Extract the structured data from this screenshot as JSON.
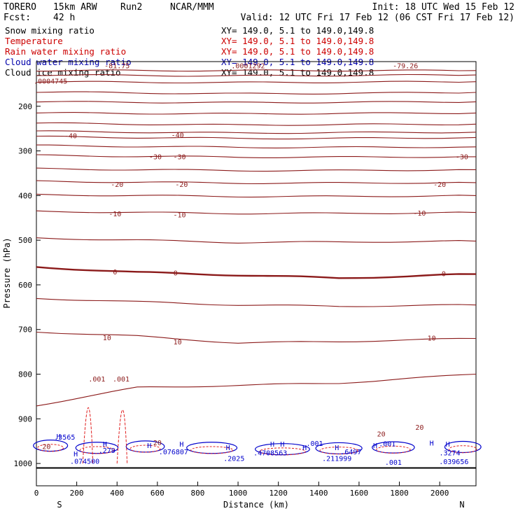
{
  "header": {
    "model": "TORERO",
    "resolution": "15km ARW",
    "run": "Run2",
    "org": "NCAR/MMM",
    "init": "Init: 18 UTC Wed 15 Feb 12",
    "fcst_label": "Fcst:",
    "fcst_value": "42 h",
    "valid": "Valid: 12 UTC Fri 17 Feb 12 (06 CST Fri 17 Feb 12)"
  },
  "legend": [
    {
      "name": "Snow mixing ratio",
      "xy": "XY= 149.0,  5.1 to 149.0,149.8",
      "color": "#000000"
    },
    {
      "name": "Temperature",
      "xy": "XY= 149.0,  5.1 to 149.0,149.8",
      "color": "#cc0000"
    },
    {
      "name": "Rain water mixing ratio",
      "xy": "XY= 149.0,  5.1 to 149.0,149.8",
      "color": "#cc0000"
    },
    {
      "name": "Cloud water mixing ratio",
      "xy": "XY= 149.0,  5.1 to 149.0,149.8",
      "color": "#0000aa"
    },
    {
      "name": "Cloud ice mixing ratio",
      "xy": "XY= 149.0,  5.1 to 149.0,149.8",
      "color": "#000000"
    }
  ],
  "colors": {
    "temperature": "#8b1a1a",
    "rain": "#e02020",
    "cloud_water": "#0000cc",
    "ground": "#000000"
  },
  "chart_data": {
    "type": "contour-cross-section",
    "xlabel": "Distance (km)",
    "ylabel": "Pressure (hPa)",
    "xlim": [
      0,
      2180
    ],
    "ylim": [
      1050,
      100
    ],
    "xticks": [
      0,
      200,
      400,
      600,
      800,
      1000,
      1200,
      1400,
      1600,
      1800,
      2000
    ],
    "yticks": [
      200,
      300,
      400,
      500,
      600,
      700,
      800,
      900,
      1000
    ],
    "x_ends": {
      "left": "S",
      "right": "N"
    },
    "temperature_isotherms": [
      {
        "t": -80,
        "p": [
          120,
          120,
          120,
          120,
          120
        ]
      },
      {
        "t": -75,
        "p": [
          130,
          131,
          132,
          131,
          130
        ]
      },
      {
        "t": -70,
        "p": [
          145,
          146,
          147,
          146,
          145
        ]
      },
      {
        "t": -65,
        "p": [
          168,
          170,
          172,
          171,
          169
        ]
      },
      {
        "t": -60,
        "p": [
          190,
          191,
          192,
          191,
          190
        ]
      },
      {
        "t": -55,
        "p": [
          215,
          216,
          217,
          216,
          215
        ]
      },
      {
        "t": -50,
        "p": [
          238,
          240,
          242,
          241,
          240
        ]
      },
      {
        "t": -45,
        "p": [
          256,
          258,
          260,
          259,
          258
        ]
      },
      {
        "t": -40,
        "p": [
          268,
          270,
          272,
          272,
          270
        ]
      },
      {
        "t": -35,
        "p": [
          288,
          290,
          292,
          292,
          291
        ]
      },
      {
        "t": -30,
        "p": [
          310,
          312,
          314,
          314,
          313
        ]
      },
      {
        "t": -25,
        "p": [
          340,
          342,
          344,
          344,
          342
        ]
      },
      {
        "t": -20,
        "p": [
          368,
          370,
          372,
          372,
          371
        ]
      },
      {
        "t": -15,
        "p": [
          398,
          400,
          402,
          402,
          400
        ]
      },
      {
        "t": -10,
        "p": [
          435,
          438,
          440,
          440,
          438
        ]
      },
      {
        "t": -5,
        "p": [
          495,
          500,
          505,
          504,
          502
        ]
      },
      {
        "t": 0,
        "p": [
          560,
          572,
          578,
          585,
          576
        ]
      },
      {
        "t": 5,
        "p": [
          630,
          638,
          645,
          648,
          645
        ]
      },
      {
        "t": 10,
        "p": [
          705,
          715,
          730,
          727,
          720
        ]
      },
      {
        "t": 15,
        "p": [
          870,
          830,
          825,
          820,
          800
        ]
      }
    ],
    "section_x_km": [
      0,
      500,
      1000,
      1500,
      2180
    ],
    "contour_labels": [
      {
        "text": "-79.26",
        "x": 1830,
        "p": 110
      },
      {
        "text": ".0004745",
        "x": 70,
        "p": 145
      },
      {
        "text": ".0001292",
        "x": 1050,
        "p": 110
      },
      {
        "text": "-81.75",
        "x": 400,
        "p": 110
      },
      {
        "text": "-40",
        "x": 170,
        "p": 267
      },
      {
        "text": "-40",
        "x": 700,
        "p": 265
      },
      {
        "text": "-30",
        "x": 590,
        "p": 314
      },
      {
        "text": "-30",
        "x": 710,
        "p": 314
      },
      {
        "text": "-30",
        "x": 2110,
        "p": 314
      },
      {
        "text": "-20",
        "x": 400,
        "p": 376
      },
      {
        "text": "-20",
        "x": 720,
        "p": 376
      },
      {
        "text": "-20",
        "x": 2000,
        "p": 376
      },
      {
        "text": "-10",
        "x": 390,
        "p": 442
      },
      {
        "text": "-10",
        "x": 710,
        "p": 444
      },
      {
        "text": "-10",
        "x": 1900,
        "p": 440
      },
      {
        "text": "0",
        "x": 390,
        "p": 572
      },
      {
        "text": "0",
        "x": 690,
        "p": 574
      },
      {
        "text": "0",
        "x": 2020,
        "p": 576
      },
      {
        "text": "10",
        "x": 350,
        "p": 719
      },
      {
        "text": "10",
        "x": 700,
        "p": 729
      },
      {
        "text": "10",
        "x": 1960,
        "p": 720
      },
      {
        "text": "20",
        "x": 1710,
        "p": 935
      },
      {
        "text": "20",
        "x": 1900,
        "p": 920
      },
      {
        "text": ".001",
        "x": 300,
        "p": 812
      },
      {
        "text": ".001",
        "x": 420,
        "p": 812
      },
      {
        "text": "20",
        "x": 50,
        "p": 963
      },
      {
        "text": ".3565",
        "x": 140,
        "p": 942
      },
      {
        "text": ".279",
        "x": 350,
        "p": 972
      },
      {
        "text": "20",
        "x": 600,
        "p": 954
      },
      {
        "text": ".076807",
        "x": 680,
        "p": 975
      },
      {
        "text": ".2025",
        "x": 980,
        "p": 990
      },
      {
        "text": ".4708563",
        "x": 1160,
        "p": 977
      },
      {
        "text": ".001",
        "x": 1380,
        "p": 956
      },
      {
        "text": ".6497",
        "x": 1560,
        "p": 975
      },
      {
        "text": ".211999",
        "x": 1490,
        "p": 990
      },
      {
        "text": ".001",
        "x": 1740,
        "p": 957
      },
      {
        "text": ".001",
        "x": 1770,
        "p": 998
      },
      {
        "text": ".074500",
        "x": 240,
        "p": 996
      },
      {
        "text": ".3274",
        "x": 2050,
        "p": 977
      },
      {
        "text": ".039656",
        "x": 2070,
        "p": 997
      }
    ],
    "H_markers": [
      {
        "x": 110,
        "p": 945
      },
      {
        "x": 195,
        "p": 984
      },
      {
        "x": 340,
        "p": 962
      },
      {
        "x": 560,
        "p": 965
      },
      {
        "x": 720,
        "p": 962
      },
      {
        "x": 950,
        "p": 970
      },
      {
        "x": 1170,
        "p": 962
      },
      {
        "x": 1220,
        "p": 962
      },
      {
        "x": 1330,
        "p": 970
      },
      {
        "x": 1490,
        "p": 970
      },
      {
        "x": 1680,
        "p": 965
      },
      {
        "x": 1960,
        "p": 960
      },
      {
        "x": 2040,
        "p": 962
      }
    ]
  }
}
